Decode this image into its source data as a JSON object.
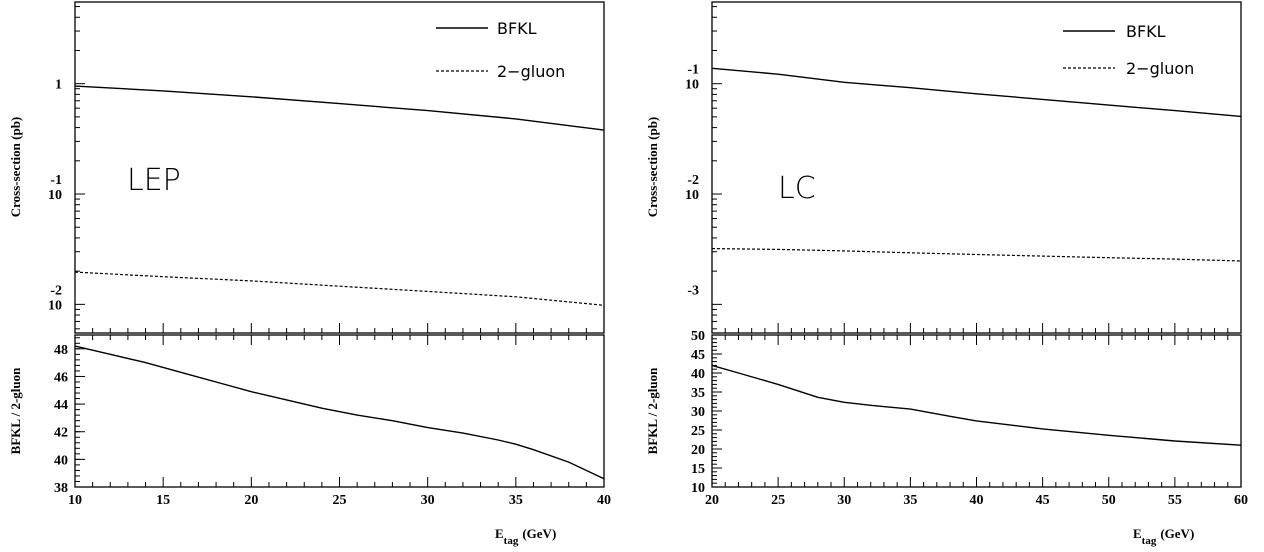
{
  "chart_data": [
    {
      "type": "line",
      "panel_label": "LEP",
      "xlabel": "E",
      "xlabel_sub": "tag",
      "xlabel_unit": "(GeV)",
      "x_ticks": [
        "10",
        "15",
        "20",
        "25",
        "30",
        "35",
        "40"
      ],
      "xlim": [
        10,
        40
      ],
      "top": {
        "ylabel": "Cross-section (pb)",
        "yscale": "log",
        "ylim": [
          0.0055,
          5.5
        ],
        "y_ticks": [
          {
            "value": 1,
            "base": "1",
            "exp": ""
          },
          {
            "value": 0.1,
            "base": "10",
            "exp": "-1"
          },
          {
            "value": 0.01,
            "base": "10",
            "exp": "-2"
          }
        ],
        "legend_position": "top-right",
        "series": [
          {
            "name": "BFKL",
            "style": "solid",
            "x": [
              10,
              15,
              20,
              25,
              30,
              35,
              40
            ],
            "y": [
              0.95,
              0.86,
              0.76,
              0.66,
              0.57,
              0.48,
              0.38
            ]
          },
          {
            "name": "2−gluon",
            "style": "dashed",
            "x": [
              10,
              15,
              20,
              25,
              30,
              35,
              40
            ],
            "y": [
              0.0196,
              0.0178,
              0.0163,
              0.0146,
              0.0131,
              0.0117,
              0.0098
            ]
          }
        ]
      },
      "bottom": {
        "ylabel": "BFKL / 2-gluon",
        "ylim": [
          38,
          49
        ],
        "y_ticks": [
          "38",
          "40",
          "42",
          "44",
          "46",
          "48"
        ],
        "series": [
          {
            "name": "BFKL / 2-gluon",
            "style": "solid",
            "x": [
              10,
              12,
              14,
              16,
              18,
              20,
              22,
              24,
              26,
              28,
              30,
              32,
              34,
              35,
              36,
              38,
              40
            ],
            "y": [
              48.2,
              47.6,
              47.0,
              46.3,
              45.6,
              44.9,
              44.3,
              43.7,
              43.2,
              42.8,
              42.3,
              41.9,
              41.4,
              41.1,
              40.7,
              39.8,
              38.6
            ]
          }
        ]
      }
    },
    {
      "type": "line",
      "panel_label": "LC",
      "xlabel": "E",
      "xlabel_sub": "tag",
      "xlabel_unit": "(GeV)",
      "x_ticks": [
        "20",
        "25",
        "30",
        "35",
        "40",
        "45",
        "50",
        "55",
        "60"
      ],
      "xlim": [
        20,
        60
      ],
      "top": {
        "ylabel": "Cross-section (pb)",
        "yscale": "log",
        "ylim": [
          0.00055,
          0.55
        ],
        "y_ticks": [
          {
            "value": 0.1,
            "base": "10",
            "exp": "-1"
          },
          {
            "value": 0.01,
            "base": "10",
            "exp": "-2"
          },
          {
            "value": 0.001,
            "base": "",
            "exp": "-3"
          }
        ],
        "legend_position": "top-right",
        "series": [
          {
            "name": "BFKL",
            "style": "solid",
            "x": [
              20,
              25,
              30,
              35,
              40,
              45,
              50,
              55,
              60
            ],
            "y": [
              0.138,
              0.122,
              0.103,
              0.092,
              0.081,
              0.072,
              0.064,
              0.057,
              0.0505
            ]
          },
          {
            "name": "2−gluon",
            "style": "dashed",
            "x": [
              20,
              25,
              30,
              35,
              40,
              45,
              50,
              55,
              60
            ],
            "y": [
              0.0032,
              0.00315,
              0.00305,
              0.00293,
              0.00283,
              0.00274,
              0.00265,
              0.00257,
              0.00247
            ]
          }
        ]
      },
      "bottom": {
        "ylabel": "BFKL / 2-gluon",
        "ylim": [
          10,
          50
        ],
        "y_ticks": [
          "10",
          "15",
          "20",
          "25",
          "30",
          "35",
          "40",
          "45",
          "50"
        ],
        "series": [
          {
            "name": "BFKL / 2-gluon",
            "style": "solid",
            "x": [
              20,
              22,
              25,
              28,
              30,
              32,
              35,
              38,
              40,
              45,
              50,
              55,
              60
            ],
            "y": [
              42.0,
              40.0,
              37.0,
              33.6,
              32.3,
              31.5,
              30.5,
              28.6,
              27.4,
              25.3,
              23.6,
              22.1,
              21.0
            ]
          }
        ]
      }
    }
  ]
}
